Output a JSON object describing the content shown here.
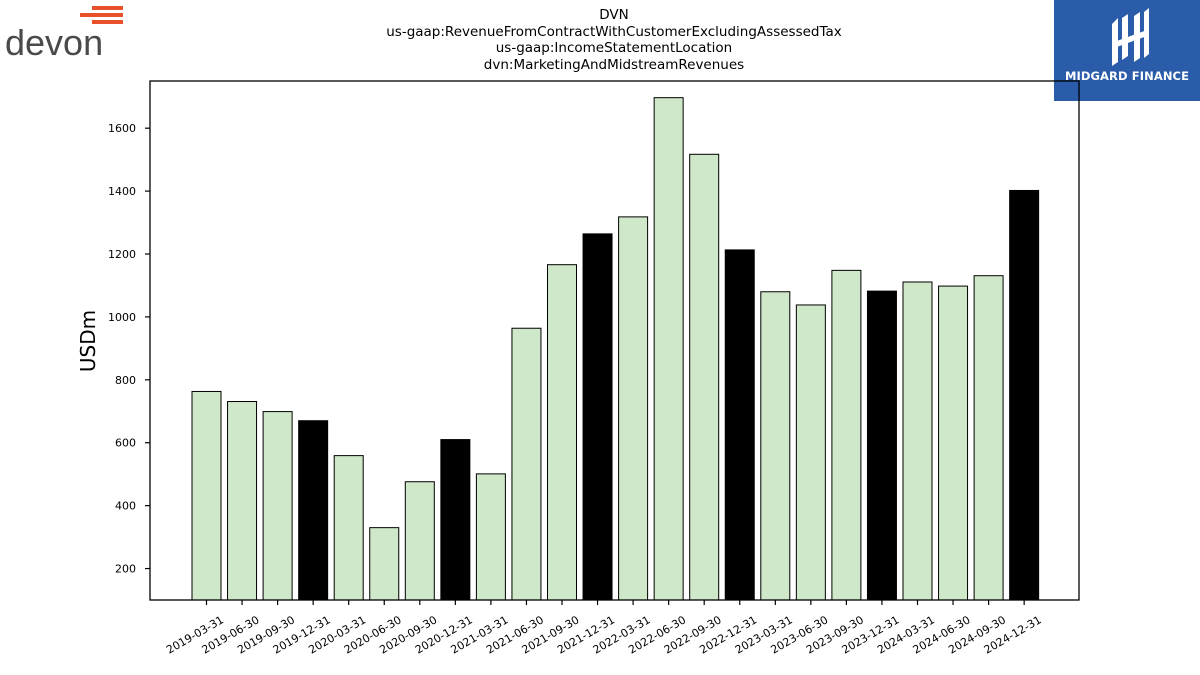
{
  "logos": {
    "left_wordmark": "devon",
    "right_wordmark": "MIDGARD FINANCE",
    "left_accent_color": "#e8502a",
    "right_bg_color": "#2b5caa"
  },
  "chart_data": {
    "type": "bar",
    "title_lines": [
      "DVN",
      "us-gaap:RevenueFromContractWithCustomerExcludingAssessedTax",
      "us-gaap:IncomeStatementLocation",
      "dvn:MarketingAndMidstreamRevenues"
    ],
    "xlabel": "",
    "ylabel": "USDm",
    "ylim": [
      100,
      1750
    ],
    "yticks": [
      200,
      400,
      600,
      800,
      1000,
      1200,
      1400,
      1600
    ],
    "grid": false,
    "colors": {
      "quarter": "#cfe8c9",
      "year_end": "#000000",
      "edge": "#000000"
    },
    "categories": [
      "2019-03-31",
      "2019-06-30",
      "2019-09-30",
      "2019-12-31",
      "2020-03-31",
      "2020-06-30",
      "2020-09-30",
      "2020-12-31",
      "2021-03-31",
      "2021-06-30",
      "2021-09-30",
      "2021-12-31",
      "2022-03-31",
      "2022-06-30",
      "2022-09-30",
      "2022-12-31",
      "2023-03-31",
      "2023-06-30",
      "2023-09-30",
      "2023-12-31",
      "2024-03-31",
      "2024-06-30",
      "2024-09-30",
      "2024-12-31"
    ],
    "values": [
      763,
      731,
      699,
      670,
      559,
      330,
      476,
      610,
      501,
      964,
      1166,
      1264,
      1318,
      1697,
      1517,
      1213,
      1080,
      1038,
      1148,
      1082,
      1111,
      1098,
      1131,
      1402
    ],
    "year_end": [
      false,
      false,
      false,
      true,
      false,
      false,
      false,
      true,
      false,
      false,
      false,
      true,
      false,
      false,
      false,
      true,
      false,
      false,
      false,
      true,
      false,
      false,
      false,
      true
    ]
  }
}
